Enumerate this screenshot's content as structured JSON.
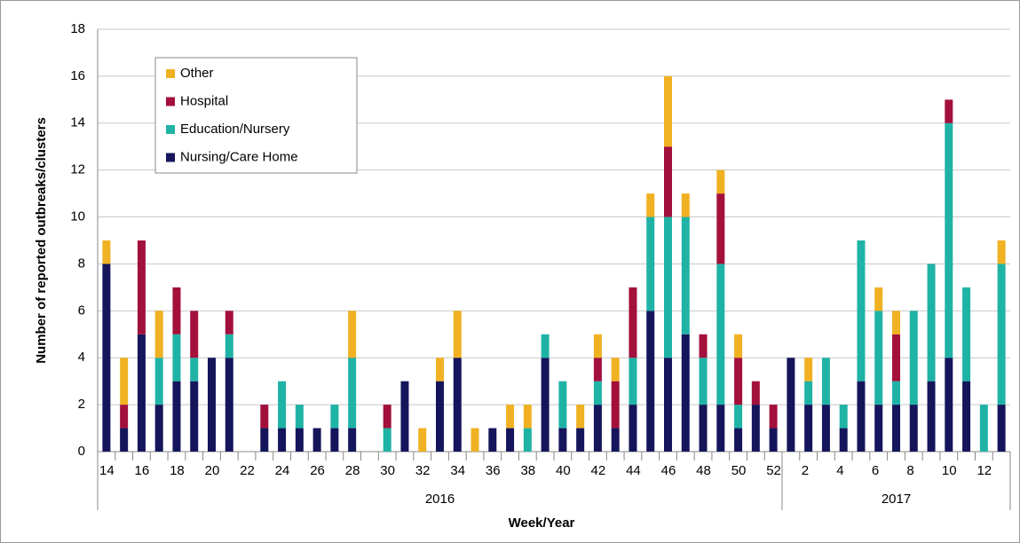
{
  "chart_data": {
    "type": "stacked-bar",
    "y_label": "Number of reported outbreaks/clusters",
    "x_label": "Week/Year",
    "categories": [
      "14",
      null,
      "16",
      null,
      "18",
      null,
      "20",
      null,
      "22",
      null,
      "24",
      null,
      "26",
      null,
      "28",
      null,
      "30",
      null,
      "32",
      null,
      "34",
      null,
      "36",
      null,
      "38",
      null,
      "40",
      null,
      "42",
      null,
      "44",
      null,
      "46",
      null,
      "48",
      null,
      "50",
      null,
      "52",
      null,
      "2",
      null,
      "4",
      null,
      "6",
      null,
      "8",
      null,
      "10",
      null,
      "12",
      null
    ],
    "x_groups": [
      {
        "label": "2016",
        "count": 39
      },
      {
        "label": "2017",
        "count": 13
      }
    ],
    "series": [
      {
        "name": "Nursing/Care Home",
        "color": "#15155c",
        "values": [
          8,
          1,
          5,
          2,
          3,
          3,
          4,
          4,
          0,
          1,
          1,
          1,
          1,
          1,
          1,
          0,
          0,
          3,
          0,
          3,
          4,
          0,
          1,
          1,
          0,
          4,
          1,
          1,
          2,
          1,
          2,
          6,
          4,
          5,
          2,
          2,
          1,
          2,
          1,
          4,
          2,
          2,
          1,
          3,
          2,
          2,
          2,
          3,
          4,
          3,
          0,
          2
        ]
      },
      {
        "name": "Education/Nursery",
        "color": "#1fb3a6",
        "values": [
          0,
          0,
          0,
          2,
          2,
          1,
          0,
          1,
          0,
          0,
          2,
          1,
          0,
          1,
          3,
          0,
          1,
          0,
          0,
          0,
          0,
          0,
          0,
          0,
          1,
          1,
          2,
          0,
          1,
          0,
          2,
          4,
          6,
          5,
          2,
          6,
          1,
          0,
          0,
          0,
          1,
          2,
          1,
          6,
          4,
          1,
          4,
          5,
          10,
          4,
          2,
          6
        ]
      },
      {
        "name": "Hospital",
        "color": "#a3103c",
        "values": [
          0,
          1,
          4,
          0,
          2,
          2,
          0,
          1,
          0,
          1,
          0,
          0,
          0,
          0,
          0,
          0,
          1,
          0,
          0,
          0,
          0,
          0,
          0,
          0,
          0,
          0,
          0,
          0,
          1,
          2,
          3,
          0,
          3,
          0,
          1,
          3,
          2,
          1,
          1,
          0,
          0,
          0,
          0,
          0,
          0,
          2,
          0,
          0,
          1,
          0,
          0,
          0
        ]
      },
      {
        "name": "Other",
        "color": "#f0b122",
        "values": [
          1,
          2,
          0,
          2,
          0,
          0,
          0,
          0,
          0,
          0,
          0,
          0,
          0,
          0,
          2,
          0,
          0,
          0,
          1,
          1,
          2,
          1,
          0,
          1,
          1,
          0,
          0,
          1,
          1,
          1,
          0,
          1,
          3,
          1,
          0,
          1,
          1,
          0,
          0,
          0,
          1,
          0,
          0,
          0,
          1,
          1,
          0,
          0,
          0,
          0,
          0,
          1
        ]
      }
    ],
    "ylim": [
      0,
      18
    ],
    "yticks": [
      0,
      2,
      4,
      6,
      8,
      10,
      12,
      14,
      16,
      18
    ],
    "grid": true,
    "legend": "top-left"
  }
}
